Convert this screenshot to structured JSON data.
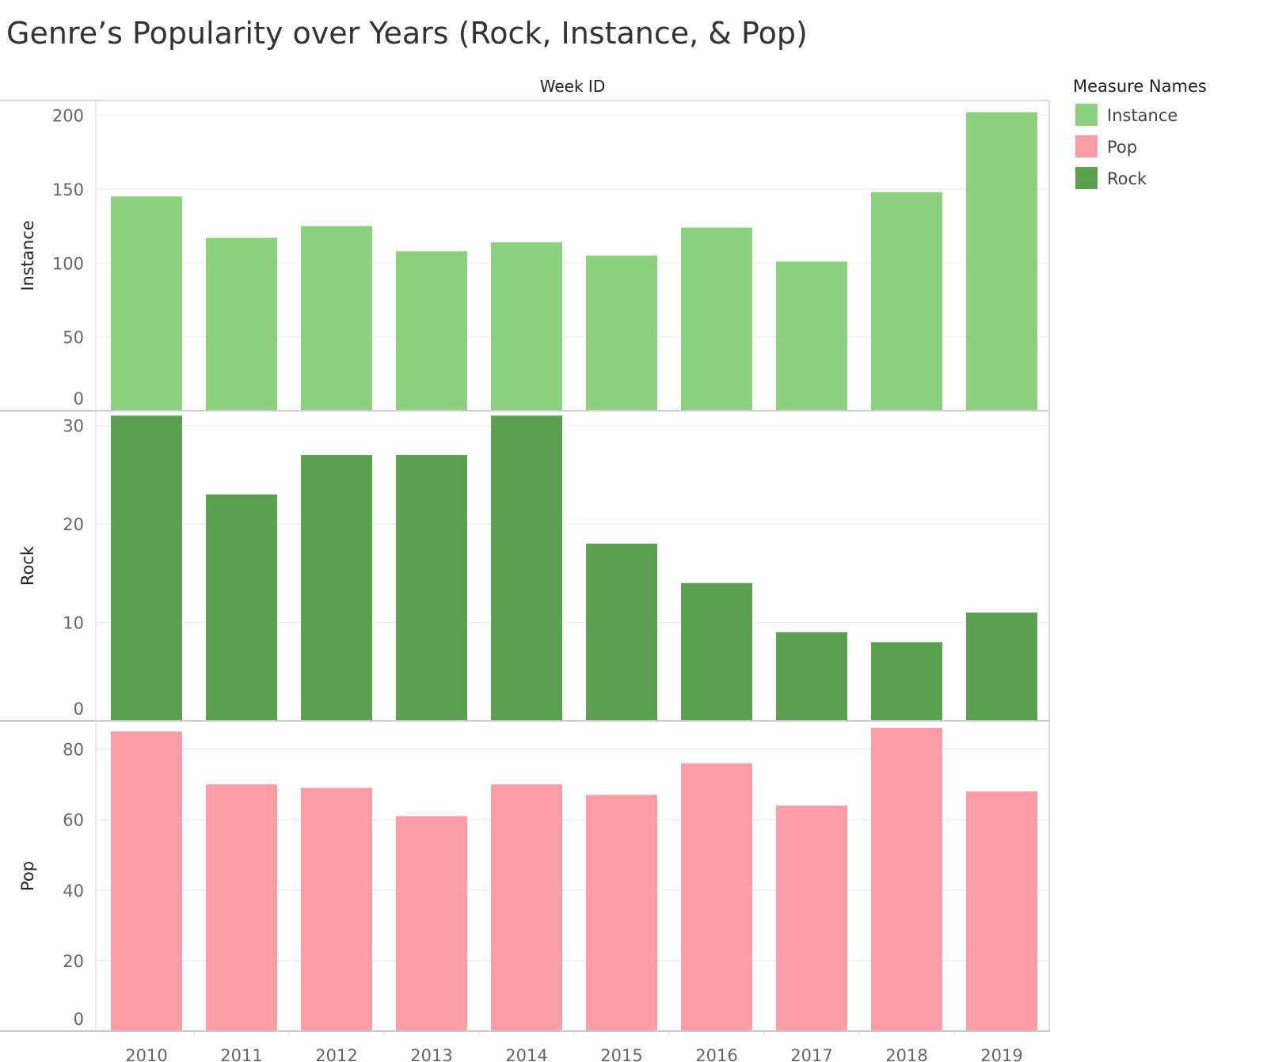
{
  "chart_data": {
    "type": "bar",
    "title": "Genre’s Popularity over Years (Rock, Instance, & Pop)",
    "column_header": "Week ID",
    "categories": [
      "2010",
      "2011",
      "2012",
      "2013",
      "2014",
      "2015",
      "2016",
      "2017",
      "2018",
      "2019"
    ],
    "panels": [
      {
        "name": "Instance",
        "color": "#8cd17d",
        "ylim": [
          0,
          210
        ],
        "ticks": [
          0,
          50,
          100,
          150,
          200
        ],
        "values": [
          145,
          117,
          125,
          108,
          114,
          105,
          124,
          101,
          148,
          202
        ]
      },
      {
        "name": "Rock",
        "color": "#59a14f",
        "ylim": [
          0,
          31.5
        ],
        "ticks": [
          0,
          10,
          20,
          30
        ],
        "values": [
          31,
          23,
          27,
          27,
          31,
          18,
          14,
          9,
          8,
          11
        ]
      },
      {
        "name": "Pop",
        "color": "#ff9d a7",
        "ylim": [
          0,
          88
        ],
        "ticks": [
          0,
          20,
          40,
          60,
          80
        ],
        "values": [
          85,
          70,
          69,
          61,
          70,
          67,
          76,
          64,
          86,
          68
        ]
      }
    ],
    "legend": {
      "title": "Measure Names",
      "position": "right",
      "items": [
        {
          "label": "Instance",
          "color": "#8cd17d"
        },
        {
          "label": "Pop",
          "color": "#ff9da7"
        },
        {
          "label": "Rock",
          "color": "#59a14f"
        }
      ]
    },
    "grid": true
  }
}
